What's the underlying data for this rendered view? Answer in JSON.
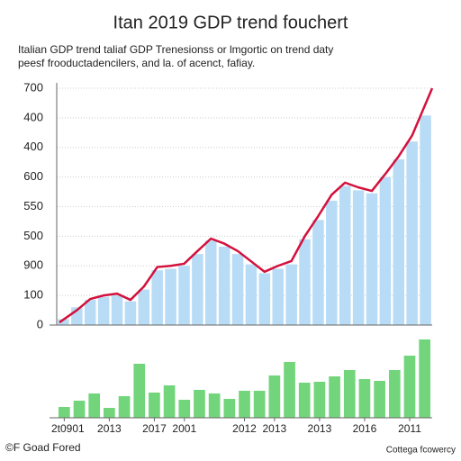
{
  "title": "Itan 2019 GDP trend fouchert",
  "subtitle": [
    "Italian GDP trend taliaf GDP Trenesionss or lmgortic on trend daty",
    "peesf frooductadencilers, and la. of acenct, fafiay."
  ],
  "footer_left": "©F Goad Fored",
  "footer_right": "Cottega fcowercy",
  "chart_data": [
    {
      "type": "combo",
      "grid": true,
      "ylim": [
        0,
        800
      ],
      "yticks": [
        0,
        100,
        {
          "value": 200,
          "label": "900"
        },
        {
          "value": 300,
          "label": "500"
        },
        {
          "value": 400,
          "label": "550"
        },
        {
          "value": 500,
          "label": "600"
        },
        {
          "value": 600,
          "label": "400"
        },
        {
          "value": 700,
          "label": "400"
        },
        {
          "value": 800,
          "label": "700"
        }
      ],
      "categories": [
        null,
        null,
        null,
        null,
        null,
        null,
        null,
        null,
        null,
        null,
        null,
        null,
        null,
        null,
        null,
        null,
        null,
        null,
        null,
        null,
        null,
        null,
        null,
        null,
        null,
        null,
        null,
        null
      ],
      "series": [
        {
          "type": "bar",
          "color": "#b9dcf6",
          "values": [
            20,
            60,
            85,
            95,
            100,
            80,
            120,
            185,
            190,
            200,
            240,
            285,
            265,
            240,
            205,
            175,
            190,
            205,
            290,
            355,
            420,
            470,
            455,
            445,
            500,
            560,
            620,
            708
          ]
        },
        {
          "type": "line",
          "color": "#d3113c",
          "values": [
            9,
            50,
            88,
            100,
            106,
            85,
            130,
            196,
            200,
            207,
            250,
            292,
            275,
            250,
            215,
            180,
            200,
            216,
            300,
            368,
            440,
            481,
            465,
            453,
            510,
            570,
            640,
            800
          ]
        }
      ]
    },
    {
      "type": "bar",
      "color": "#72d57c",
      "ylim": [
        0,
        100
      ],
      "categories": [
        "2t0901",
        null,
        null,
        "2013",
        null,
        null,
        "2017",
        null,
        "2001",
        null,
        null,
        null,
        "2012",
        null,
        "2013",
        null,
        null,
        "2013",
        null,
        null,
        "2016",
        null,
        null,
        "2011",
        null
      ],
      "values": [
        12,
        19,
        27,
        11,
        24,
        60,
        28,
        36,
        20,
        31,
        27,
        21,
        30,
        30,
        47,
        62,
        39,
        40,
        46,
        53,
        43,
        41,
        53,
        69,
        87
      ]
    }
  ]
}
